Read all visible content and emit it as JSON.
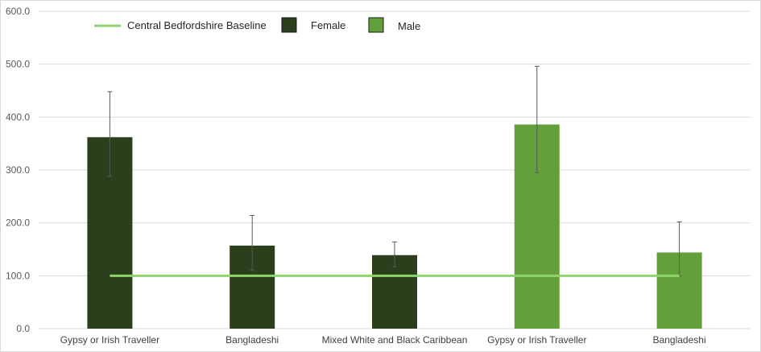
{
  "chart_data": {
    "type": "bar",
    "title": "",
    "xlabel": "",
    "ylabel": "",
    "ylim": [
      0,
      600
    ],
    "yticks": [
      0,
      100,
      200,
      300,
      400,
      500,
      600
    ],
    "ytick_labels": [
      "0.0",
      "100.0",
      "200.0",
      "300.0",
      "400.0",
      "500.0",
      "600.0"
    ],
    "grid": true,
    "legend_position": "top-left",
    "categories": [
      "Gypsy or Irish Traveller",
      "Bangladeshi",
      "Mixed White and Black Caribbean",
      "Gypsy or Irish Traveller",
      "Bangladeshi"
    ],
    "bars": [
      {
        "category": "Gypsy or Irish Traveller",
        "series": "Female",
        "value": 362,
        "err_low": 288,
        "err_high": 448
      },
      {
        "category": "Bangladeshi",
        "series": "Female",
        "value": 157,
        "err_low": 110,
        "err_high": 214
      },
      {
        "category": "Mixed White and Black Caribbean",
        "series": "Female",
        "value": 139,
        "err_low": 117,
        "err_high": 164
      },
      {
        "category": "Gypsy or Irish Traveller",
        "series": "Male",
        "value": 386,
        "err_low": 295,
        "err_high": 496
      },
      {
        "category": "Bangladeshi",
        "series": "Male",
        "value": 144,
        "err_low": 100,
        "err_high": 202
      }
    ],
    "series": [
      {
        "name": "Female",
        "color": "#2b3f1c"
      },
      {
        "name": "Male",
        "color": "#63a03c"
      }
    ],
    "baseline": {
      "name": "Central Bedfordshire Baseline",
      "value": 100,
      "color": "#8fd36b"
    },
    "legend": [
      "Central Bedfordshire Baseline",
      "Female",
      "Male"
    ]
  }
}
